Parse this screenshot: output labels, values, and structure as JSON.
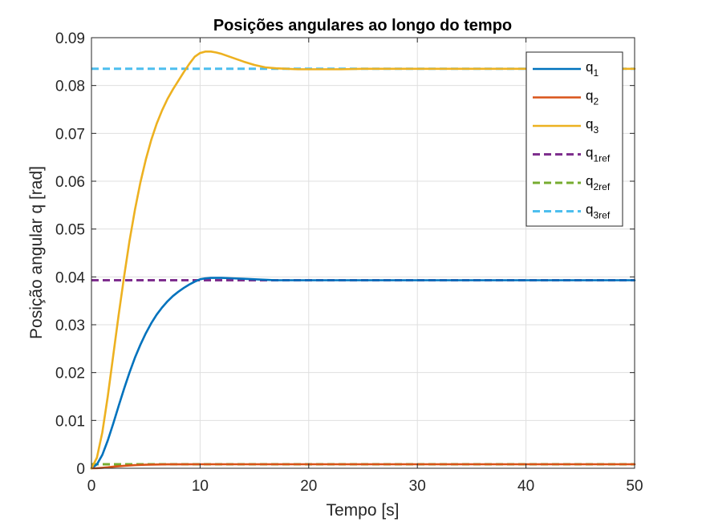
{
  "chart_data": {
    "type": "line",
    "title": "Posições angulares ao longo do tempo",
    "xlabel": "Tempo [s]",
    "ylabel": "Posição angular q [rad]",
    "xlim": [
      0,
      50
    ],
    "ylim": [
      0,
      0.09
    ],
    "xticks": [
      0,
      10,
      20,
      30,
      40,
      50
    ],
    "xtick_labels": [
      "0",
      "10",
      "20",
      "30",
      "40",
      "50"
    ],
    "yticks": [
      0,
      0.01,
      0.02,
      0.03,
      0.04,
      0.05,
      0.06,
      0.07,
      0.08,
      0.09
    ],
    "ytick_labels": [
      "0",
      "0.01",
      "0.02",
      "0.03",
      "0.04",
      "0.05",
      "0.06",
      "0.07",
      "0.08",
      "0.09"
    ],
    "grid": true,
    "legend_position": "top-right",
    "series": [
      {
        "name": "q1",
        "label_main": "q",
        "label_sub": "1",
        "color": "#0072BD",
        "style": "solid",
        "x": [
          0,
          0.5,
          1,
          1.5,
          2,
          2.5,
          3,
          3.5,
          4,
          4.5,
          5,
          5.5,
          6,
          6.5,
          7,
          7.5,
          8,
          8.5,
          9,
          9.5,
          10,
          10.5,
          11,
          12,
          13,
          14,
          15,
          16,
          17,
          18,
          19,
          20,
          22,
          25,
          30,
          35,
          40,
          45,
          50
        ],
        "y": [
          0,
          0.0008,
          0.0028,
          0.0058,
          0.0093,
          0.013,
          0.0166,
          0.02,
          0.0231,
          0.0258,
          0.0282,
          0.0303,
          0.0321,
          0.0336,
          0.0349,
          0.036,
          0.0369,
          0.0377,
          0.0384,
          0.039,
          0.0395,
          0.0397,
          0.0398,
          0.0398,
          0.0397,
          0.0396,
          0.0395,
          0.0394,
          0.0393,
          0.0393,
          0.0393,
          0.0393,
          0.0393,
          0.0393,
          0.0393,
          0.0393,
          0.0393,
          0.0393,
          0.0393
        ]
      },
      {
        "name": "q2",
        "label_main": "q",
        "label_sub": "2",
        "color": "#D95319",
        "style": "solid",
        "x": [
          0,
          0.5,
          1,
          1.5,
          2,
          3,
          4,
          5,
          6,
          7,
          8,
          10,
          15,
          20,
          30,
          40,
          50
        ],
        "y": [
          0,
          2e-05,
          0.0001,
          0.0002,
          0.00033,
          0.00052,
          0.00066,
          0.00074,
          0.00079,
          0.00082,
          0.00083,
          0.00084,
          0.00084,
          0.00084,
          0.00084,
          0.00084,
          0.00084
        ]
      },
      {
        "name": "q3",
        "label_main": "q",
        "label_sub": "3",
        "color": "#EDB120",
        "style": "solid",
        "x": [
          0,
          0.5,
          1,
          1.5,
          2,
          2.5,
          3,
          3.5,
          4,
          4.5,
          5,
          5.5,
          6,
          6.5,
          7,
          7.5,
          8,
          8.5,
          9,
          9.5,
          10,
          10.5,
          11,
          11.5,
          12,
          13,
          14,
          15,
          16,
          17,
          18,
          19,
          20,
          21,
          22,
          23,
          25,
          30,
          35,
          40,
          45,
          50
        ],
        "y": [
          0,
          0.0022,
          0.0075,
          0.015,
          0.0235,
          0.032,
          0.04,
          0.0475,
          0.054,
          0.0597,
          0.0645,
          0.0686,
          0.072,
          0.0748,
          0.0772,
          0.0792,
          0.081,
          0.0828,
          0.0845,
          0.086,
          0.0868,
          0.0871,
          0.0871,
          0.0869,
          0.0866,
          0.0858,
          0.085,
          0.0843,
          0.0838,
          0.0836,
          0.0835,
          0.0834,
          0.0834,
          0.0834,
          0.0834,
          0.0834,
          0.0835,
          0.0835,
          0.0835,
          0.0835,
          0.0835,
          0.0835
        ]
      },
      {
        "name": "q1ref",
        "label_main": "q",
        "label_sub": "1ref",
        "color": "#7E2F8E",
        "style": "dashed",
        "x": [
          0,
          50
        ],
        "y": [
          0.0393,
          0.0393
        ]
      },
      {
        "name": "q2ref",
        "label_main": "q",
        "label_sub": "2ref",
        "color": "#77AC30",
        "style": "dashed",
        "x": [
          0,
          50
        ],
        "y": [
          0.00084,
          0.00084
        ]
      },
      {
        "name": "q3ref",
        "label_main": "q",
        "label_sub": "3ref",
        "color": "#4DBEEE",
        "style": "dashed",
        "x": [
          0,
          50
        ],
        "y": [
          0.0835,
          0.0835
        ]
      }
    ]
  }
}
